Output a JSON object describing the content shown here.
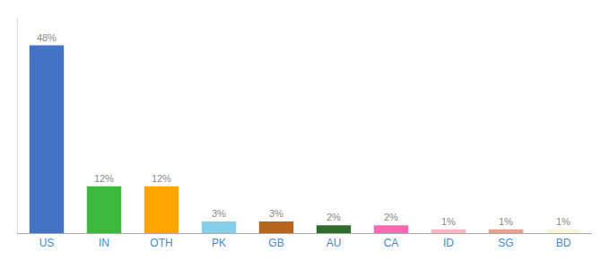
{
  "chart_data": {
    "type": "bar",
    "categories": [
      "US",
      "IN",
      "OTH",
      "PK",
      "GB",
      "AU",
      "CA",
      "ID",
      "SG",
      "BD"
    ],
    "values": [
      48,
      12,
      12,
      3,
      3,
      2,
      2,
      1,
      1,
      1
    ],
    "value_labels": [
      "48%",
      "12%",
      "12%",
      "3%",
      "3%",
      "2%",
      "2%",
      "1%",
      "1%",
      "1%"
    ],
    "colors": [
      "#4472c4",
      "#3dba3d",
      "#ffa500",
      "#87ceeb",
      "#b5651d",
      "#2d6e2d",
      "#ff69b4",
      "#ffb6c1",
      "#e8a090",
      "#f5f5dc"
    ],
    "ylim": [
      0,
      55
    ],
    "data_labels": true,
    "tick_labels": "x",
    "grid": false
  }
}
